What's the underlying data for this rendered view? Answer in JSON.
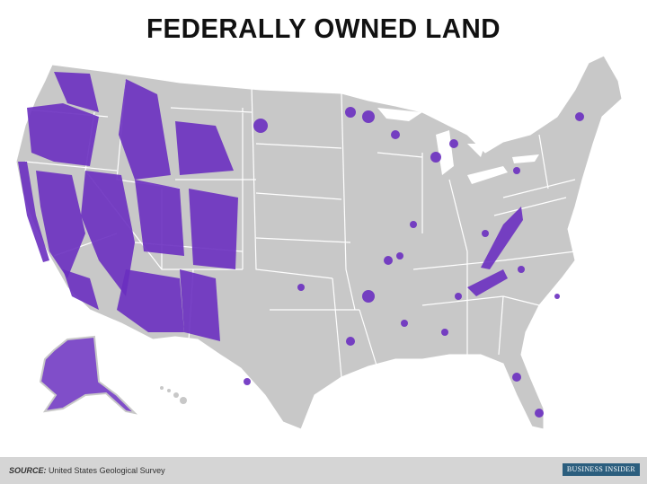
{
  "title": "FEDERALLY OWNED LAND",
  "footer": {
    "source_label": "SOURCE:",
    "source_text": "United States Geological Survey",
    "logo_text": "BUSINESS INSIDER"
  },
  "colors": {
    "land": "#c8c8c8",
    "federal_land": "#6a2fc0",
    "borders": "#ffffff",
    "footer": "#d5d5d5",
    "logo": "#2b5e7e"
  }
}
